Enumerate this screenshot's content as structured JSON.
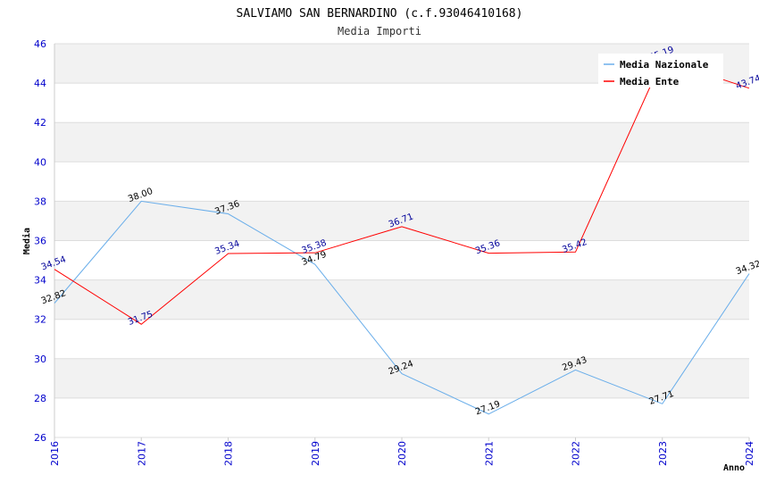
{
  "chart_data": {
    "type": "line",
    "title": "SALVIAMO SAN BERNARDINO (c.f.93046410168)",
    "subtitle": "Media Importi",
    "xlabel": "Anno",
    "ylabel": "Media",
    "ylim": [
      26,
      46
    ],
    "yticks": [
      26,
      28,
      30,
      32,
      34,
      36,
      38,
      40,
      42,
      44,
      46
    ],
    "categories": [
      "2016",
      "2017",
      "2018",
      "2019",
      "2020",
      "2021",
      "2022",
      "2023",
      "2024"
    ],
    "legend_position": "top-right",
    "series": [
      {
        "name": "Media Nazionale",
        "color": "#6aaeea",
        "label_color": "#000000",
        "values": [
          32.82,
          38.0,
          37.36,
          34.79,
          29.24,
          27.19,
          29.43,
          27.71,
          34.32
        ],
        "labels": [
          "32.82",
          "38.00",
          "37.36",
          "34.79",
          "29.24",
          "27.19",
          "29.43",
          "27.71",
          "34.32"
        ]
      },
      {
        "name": "Media Ente",
        "color": "#ff0000",
        "label_color": "#000099",
        "values": [
          34.54,
          31.75,
          35.34,
          35.38,
          36.71,
          35.36,
          35.42,
          45.19,
          43.74
        ],
        "labels": [
          "34.54",
          "31.75",
          "35.34",
          "35.38",
          "36.71",
          "35.36",
          "35.42",
          "45.19",
          "43.74"
        ]
      }
    ]
  }
}
